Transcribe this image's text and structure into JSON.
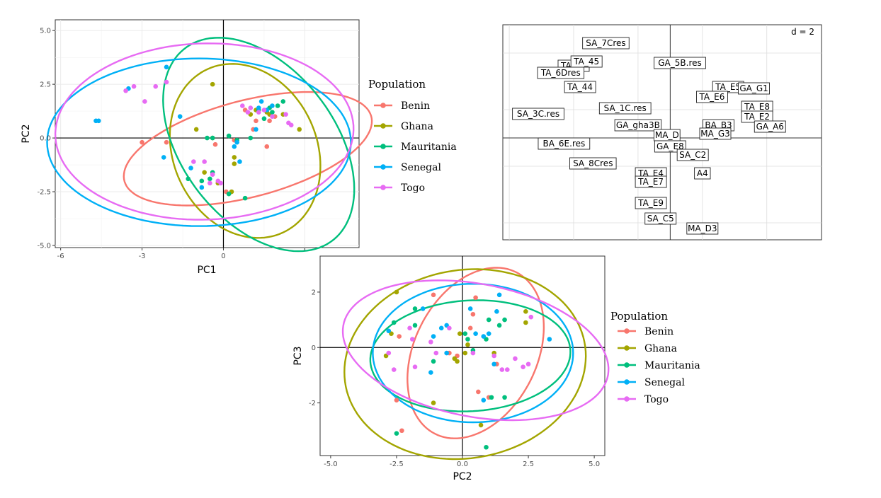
{
  "chart_data": [
    {
      "id": "pc1_pc2",
      "type": "scatter",
      "xlabel": "PC1",
      "ylabel": "PC2",
      "xlim": [
        -6.2,
        5.0
      ],
      "ylim": [
        -5.1,
        5.5
      ],
      "xticks": [
        -6,
        -3,
        0,
        3
      ],
      "yticks": [
        -5.0,
        -2.5,
        0.0,
        2.5,
        5.0
      ],
      "xtick_labels": [
        "-6",
        "-3",
        "0",
        ""
      ],
      "ytick_labels": [
        "-5.0",
        "-2.5",
        "0.0",
        "2.5",
        "5.0"
      ],
      "zero_lines": true,
      "grid": true,
      "legend": {
        "title": "Population",
        "position": "right",
        "entries": [
          "Benin",
          "Ghana",
          "Mauritania",
          "Senegal",
          "Togo"
        ]
      },
      "series": [
        {
          "name": "Benin",
          "color": "#F8766D",
          "points": [
            [
              -3.0,
              -0.2
            ],
            [
              -2.1,
              -0.2
            ],
            [
              -0.3,
              -0.3
            ],
            [
              0.4,
              -0.1
            ],
            [
              1.1,
              0.4
            ],
            [
              1.2,
              0.8
            ],
            [
              1.9,
              1.0
            ],
            [
              1.7,
              0.8
            ],
            [
              0.8,
              1.3
            ],
            [
              1.6,
              -0.4
            ],
            [
              0.1,
              -2.5
            ],
            [
              -0.2,
              -2.1
            ]
          ],
          "ellipse": {
            "cx": 0.9,
            "cy": -0.5,
            "rx": 4.8,
            "ry": 2.2,
            "angle": 20
          }
        },
        {
          "name": "Ghana",
          "color": "#A3A500",
          "points": [
            [
              -0.4,
              2.5
            ],
            [
              -1.0,
              0.4
            ],
            [
              -0.4,
              0.0
            ],
            [
              0.4,
              -0.9
            ],
            [
              0.3,
              -2.5
            ],
            [
              0.4,
              -1.2
            ],
            [
              -0.7,
              -1.6
            ],
            [
              -0.2,
              -2.1
            ],
            [
              0.2,
              -2.6
            ],
            [
              1.0,
              1.1
            ],
            [
              1.2,
              1.3
            ],
            [
              1.7,
              1.1
            ],
            [
              2.2,
              1.1
            ],
            [
              2.8,
              0.4
            ],
            [
              1.6,
              1.2
            ]
          ],
          "ellipse": {
            "cx": 0.8,
            "cy": -0.6,
            "rx": 2.7,
            "ry": 4.1,
            "angle": 12
          }
        },
        {
          "name": "Mauritania",
          "color": "#00BF7D",
          "points": [
            [
              -0.6,
              0.0
            ],
            [
              -0.4,
              0.0
            ],
            [
              0.2,
              0.1
            ],
            [
              0.5,
              -0.1
            ],
            [
              -1.3,
              -1.9
            ],
            [
              -0.8,
              -2.0
            ],
            [
              -0.5,
              -1.9
            ],
            [
              0.2,
              -2.6
            ],
            [
              0.8,
              -2.8
            ],
            [
              1.3,
              1.3
            ],
            [
              1.7,
              1.4
            ],
            [
              2.0,
              1.5
            ],
            [
              2.2,
              1.7
            ],
            [
              1.8,
              1.2
            ],
            [
              1.5,
              0.9
            ],
            [
              1.0,
              0.0
            ],
            [
              -0.4,
              -1.6
            ]
          ],
          "ellipse": {
            "cx": 1.3,
            "cy": -0.3,
            "rx": 3.0,
            "ry": 5.3,
            "angle": 25
          }
        },
        {
          "name": "Senegal",
          "color": "#00B0F6",
          "points": [
            [
              -4.7,
              0.8
            ],
            [
              -4.6,
              0.8
            ],
            [
              -3.5,
              2.3
            ],
            [
              -2.1,
              3.3
            ],
            [
              -1.6,
              1.0
            ],
            [
              -2.2,
              -0.9
            ],
            [
              -1.2,
              -1.4
            ],
            [
              -0.8,
              -2.3
            ],
            [
              0.5,
              -0.2
            ],
            [
              0.6,
              -1.1
            ],
            [
              1.2,
              0.4
            ],
            [
              1.3,
              1.4
            ],
            [
              1.6,
              1.3
            ],
            [
              1.8,
              1.5
            ],
            [
              1.4,
              1.7
            ],
            [
              0.4,
              -0.4
            ]
          ],
          "ellipse": {
            "cx": -0.9,
            "cy": -0.2,
            "rx": 5.6,
            "ry": 3.9,
            "angle": 0
          }
        },
        {
          "name": "Togo",
          "color": "#E76BF3",
          "points": [
            [
              -3.6,
              2.2
            ],
            [
              -3.3,
              2.4
            ],
            [
              -2.5,
              2.4
            ],
            [
              -2.1,
              2.6
            ],
            [
              -2.9,
              1.7
            ],
            [
              -1.1,
              -1.1
            ],
            [
              -0.7,
              -1.1
            ],
            [
              -0.4,
              -1.7
            ],
            [
              -0.2,
              -2.0
            ],
            [
              -0.1,
              -2.1
            ],
            [
              0.7,
              1.5
            ],
            [
              1.0,
              1.4
            ],
            [
              1.3,
              1.2
            ],
            [
              1.5,
              1.3
            ],
            [
              1.8,
              1.0
            ],
            [
              2.3,
              1.1
            ],
            [
              2.4,
              0.7
            ],
            [
              2.5,
              0.6
            ],
            [
              0.9,
              1.2
            ],
            [
              -0.5,
              -2.1
            ]
          ],
          "ellipse": {
            "cx": -0.7,
            "cy": 0.3,
            "rx": 5.5,
            "ry": 4.1,
            "angle": 3
          }
        }
      ]
    },
    {
      "id": "biplot",
      "type": "scatter",
      "scale_label": "d = 2",
      "xlim": [
        -5.2,
        4.7
      ],
      "ylim": [
        -3.6,
        4.0
      ],
      "gridlines_x": [
        -5,
        -3,
        -1,
        1,
        3
      ],
      "gridlines_y": [
        -3,
        -1,
        1,
        3
      ],
      "axes_lines": true,
      "labels": [
        {
          "text": "SA_7Cres",
          "x": -2.0,
          "y": 3.35
        },
        {
          "text": "TA_47",
          "x": -3.0,
          "y": 2.55
        },
        {
          "text": "TA_45",
          "x": -2.6,
          "y": 2.7
        },
        {
          "text": "TA_6Dres",
          "x": -3.4,
          "y": 2.3
        },
        {
          "text": "GA_5B.res",
          "x": 0.3,
          "y": 2.65
        },
        {
          "text": "TA_44",
          "x": -2.8,
          "y": 1.8
        },
        {
          "text": "SA_1C.res",
          "x": -1.4,
          "y": 1.05
        },
        {
          "text": "SA_3C.res",
          "x": -4.1,
          "y": 0.85
        },
        {
          "text": "TA_E5",
          "x": 1.8,
          "y": 1.8
        },
        {
          "text": "GA_G1",
          "x": 2.6,
          "y": 1.75
        },
        {
          "text": "TA_E6",
          "x": 1.3,
          "y": 1.45
        },
        {
          "text": "TA_E8",
          "x": 2.7,
          "y": 1.1
        },
        {
          "text": "TA_E2",
          "x": 2.7,
          "y": 0.75
        },
        {
          "text": "GA_A6",
          "x": 3.1,
          "y": 0.4
        },
        {
          "text": "BA_B3",
          "x": 1.5,
          "y": 0.45
        },
        {
          "text": "MA_G3",
          "x": 1.4,
          "y": 0.15
        },
        {
          "text": "GA_gha3B",
          "x": -1.0,
          "y": 0.45
        },
        {
          "text": "MA_D",
          "x": -0.1,
          "y": 0.1
        },
        {
          "text": "GA_E8",
          "x": 0.0,
          "y": -0.3
        },
        {
          "text": "SA_C2",
          "x": 0.7,
          "y": -0.6
        },
        {
          "text": "BA_6E.res",
          "x": -3.3,
          "y": -0.2
        },
        {
          "text": "SA_8Cres",
          "x": -2.4,
          "y": -0.9
        },
        {
          "text": "TA_E4",
          "x": -0.6,
          "y": -1.25
        },
        {
          "text": "A4",
          "x": 1.0,
          "y": -1.25
        },
        {
          "text": "TA_E7",
          "x": -0.6,
          "y": -1.55
        },
        {
          "text": "TA_E9",
          "x": -0.6,
          "y": -2.3
        },
        {
          "text": "SA_C5",
          "x": -0.3,
          "y": -2.85
        },
        {
          "text": "MA_D3",
          "x": 1.0,
          "y": -3.2
        }
      ]
    },
    {
      "id": "pc2_pc3",
      "type": "scatter",
      "xlabel": "PC2",
      "ylabel": "PC3",
      "xlim": [
        -5.4,
        5.4
      ],
      "ylim": [
        -3.9,
        3.3
      ],
      "xticks": [
        -5.0,
        -2.5,
        0.0,
        2.5,
        5.0
      ],
      "yticks": [
        -2,
        0,
        2
      ],
      "xtick_labels": [
        "-5.0",
        "-2.5",
        "0.0",
        "2.5",
        "5.0"
      ],
      "ytick_labels": [
        "-2",
        "0",
        "2"
      ],
      "zero_lines": true,
      "grid": false,
      "legend": {
        "title": "Population",
        "position": "right",
        "entries": [
          "Benin",
          "Ghana",
          "Mauritania",
          "Senegal",
          "Togo"
        ]
      },
      "series": [
        {
          "name": "Benin",
          "color": "#F8766D",
          "points": [
            [
              -2.4,
              0.4
            ],
            [
              -1.1,
              1.9
            ],
            [
              0.5,
              1.8
            ],
            [
              0.4,
              1.2
            ],
            [
              -2.5,
              -1.9
            ],
            [
              -2.3,
              -3.0
            ],
            [
              -0.5,
              -0.2
            ],
            [
              0.6,
              -1.6
            ],
            [
              1.0,
              -1.8
            ],
            [
              1.3,
              -0.6
            ],
            [
              -0.2,
              -0.3
            ],
            [
              0.3,
              0.7
            ]
          ],
          "ellipse": {
            "cx": 0.5,
            "cy": -0.2,
            "rx": 3.3,
            "ry": 2.3,
            "angle": 60
          }
        },
        {
          "name": "Ghana",
          "color": "#A3A500",
          "points": [
            [
              -2.5,
              2.0
            ],
            [
              -2.7,
              0.5
            ],
            [
              -2.9,
              -0.3
            ],
            [
              -1.1,
              -2.0
            ],
            [
              -0.3,
              -0.4
            ],
            [
              0.1,
              -0.2
            ],
            [
              0.2,
              0.1
            ],
            [
              -0.1,
              0.5
            ],
            [
              1.2,
              -0.2
            ],
            [
              2.4,
              1.3
            ],
            [
              2.4,
              0.9
            ],
            [
              0.7,
              -2.8
            ],
            [
              -0.2,
              -0.5
            ]
          ],
          "ellipse": {
            "cx": 0.1,
            "cy": -0.6,
            "rx": 4.6,
            "ry": 3.4,
            "angle": 8
          }
        },
        {
          "name": "Mauritania",
          "color": "#00BF7D",
          "points": [
            [
              -2.5,
              -3.1
            ],
            [
              -2.6,
              0.9
            ],
            [
              -1.8,
              1.4
            ],
            [
              -1.8,
              0.8
            ],
            [
              -1.1,
              -0.5
            ],
            [
              0.1,
              0.5
            ],
            [
              0.2,
              0.3
            ],
            [
              0.4,
              -0.1
            ],
            [
              0.9,
              0.3
            ],
            [
              1.0,
              1.0
            ],
            [
              1.4,
              0.8
            ],
            [
              1.6,
              1.0
            ],
            [
              1.6,
              -1.8
            ],
            [
              1.1,
              -1.8
            ],
            [
              0.9,
              -3.6
            ]
          ],
          "ellipse": {
            "cx": 0.3,
            "cy": -0.3,
            "rx": 3.8,
            "ry": 2.0,
            "angle": 3
          }
        },
        {
          "name": "Senegal",
          "color": "#00B0F6",
          "points": [
            [
              -2.8,
              0.6
            ],
            [
              -1.5,
              1.4
            ],
            [
              -1.2,
              -0.9
            ],
            [
              -1.1,
              0.4
            ],
            [
              -0.8,
              0.7
            ],
            [
              -0.6,
              0.8
            ],
            [
              0.3,
              1.4
            ],
            [
              0.5,
              0.5
            ],
            [
              0.8,
              0.4
            ],
            [
              1.0,
              0.5
            ],
            [
              1.3,
              1.3
            ],
            [
              1.4,
              1.9
            ],
            [
              1.2,
              -0.6
            ],
            [
              0.8,
              -1.9
            ],
            [
              3.3,
              0.3
            ],
            [
              -0.6,
              -0.2
            ]
          ],
          "ellipse": {
            "cx": 0.4,
            "cy": -0.2,
            "rx": 3.8,
            "ry": 2.5,
            "angle": 0
          }
        },
        {
          "name": "Togo",
          "color": "#E76BF3",
          "points": [
            [
              -2.8,
              -0.2
            ],
            [
              -2.0,
              0.7
            ],
            [
              -1.9,
              0.3
            ],
            [
              -1.8,
              -0.7
            ],
            [
              -1.2,
              0.2
            ],
            [
              -1.0,
              -0.2
            ],
            [
              -0.5,
              0.7
            ],
            [
              0.4,
              -0.2
            ],
            [
              1.2,
              -0.3
            ],
            [
              1.7,
              -0.8
            ],
            [
              2.0,
              -0.4
            ],
            [
              2.3,
              -0.7
            ],
            [
              2.5,
              -0.6
            ],
            [
              2.6,
              1.1
            ],
            [
              1.5,
              -0.8
            ],
            [
              -2.6,
              -0.8
            ]
          ],
          "ellipse": {
            "cx": 0.5,
            "cy": -0.1,
            "rx": 5.1,
            "ry": 2.4,
            "angle": -10
          }
        }
      ]
    }
  ]
}
